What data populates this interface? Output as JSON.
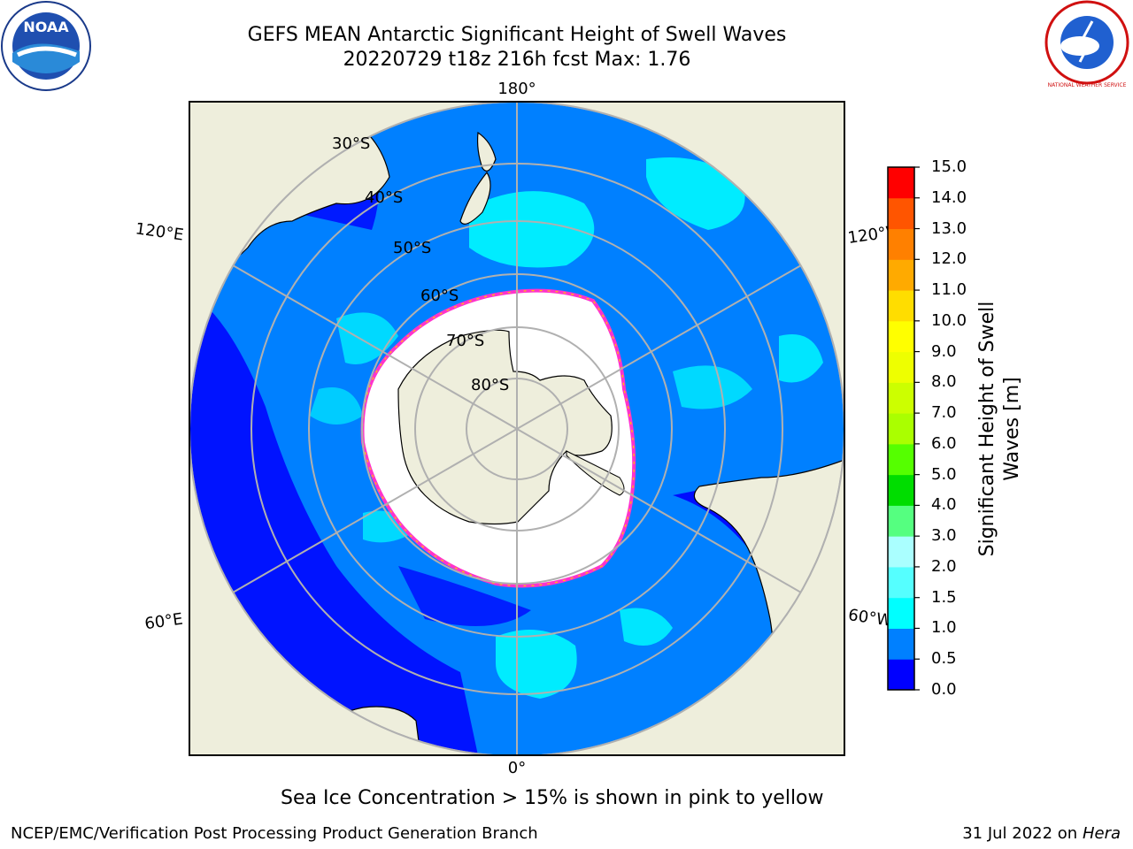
{
  "header": {
    "title_line1": "GEFS MEAN Antarctic Significant Height of Swell Waves",
    "title_line2": "20220729 t18z 216h fcst   Max: 1.76"
  },
  "logos": {
    "left": {
      "name": "noaa-logo",
      "text": "NOAA"
    },
    "right": {
      "name": "national-weather-service-logo",
      "text": "NATIONAL WEATHER SERVICE"
    }
  },
  "map": {
    "projection": "south-polar-stereographic",
    "longitude_labels": {
      "top": "180°",
      "bottom": "0°",
      "upper_left": "120°E",
      "lower_left": "60°E",
      "upper_right": "120°W",
      "lower_right": "60°W"
    },
    "latitude_labels": [
      "30°S",
      "40°S",
      "50°S",
      "60°S",
      "70°S",
      "80°S"
    ],
    "colors": {
      "ocean_low": "#0000ff",
      "ocean_mid": "#0080ff",
      "swell_1_5": "#00ffff",
      "land": "#eeeedc",
      "ice_edge": "#ff33cc",
      "grid": "#b0b0b0"
    }
  },
  "colorbar": {
    "label": "Significant Height of Swell Waves [m]",
    "ticks": [
      "0.0",
      "0.5",
      "1.0",
      "1.5",
      "2.0",
      "3.0",
      "4.0",
      "5.0",
      "6.0",
      "7.0",
      "8.0",
      "9.0",
      "10.0",
      "11.0",
      "12.0",
      "13.0",
      "14.0",
      "15.0"
    ],
    "colors": [
      "#0000ff",
      "#0080ff",
      "#00ffff",
      "#55ffff",
      "#aaffff",
      "#55ff80",
      "#00dd00",
      "#55ff00",
      "#aaff00",
      "#ccff00",
      "#eeff00",
      "#ffff00",
      "#ffdd00",
      "#ffaa00",
      "#ff8000",
      "#ff5500",
      "#ff0000"
    ]
  },
  "caption": "Sea Ice Concentration > 15% is shown in pink to yellow",
  "footer": {
    "left": "NCEP/EMC/Verification Post Processing Product Generation Branch",
    "right_date": "31 Jul 2022 on ",
    "right_machine": "Hera"
  }
}
